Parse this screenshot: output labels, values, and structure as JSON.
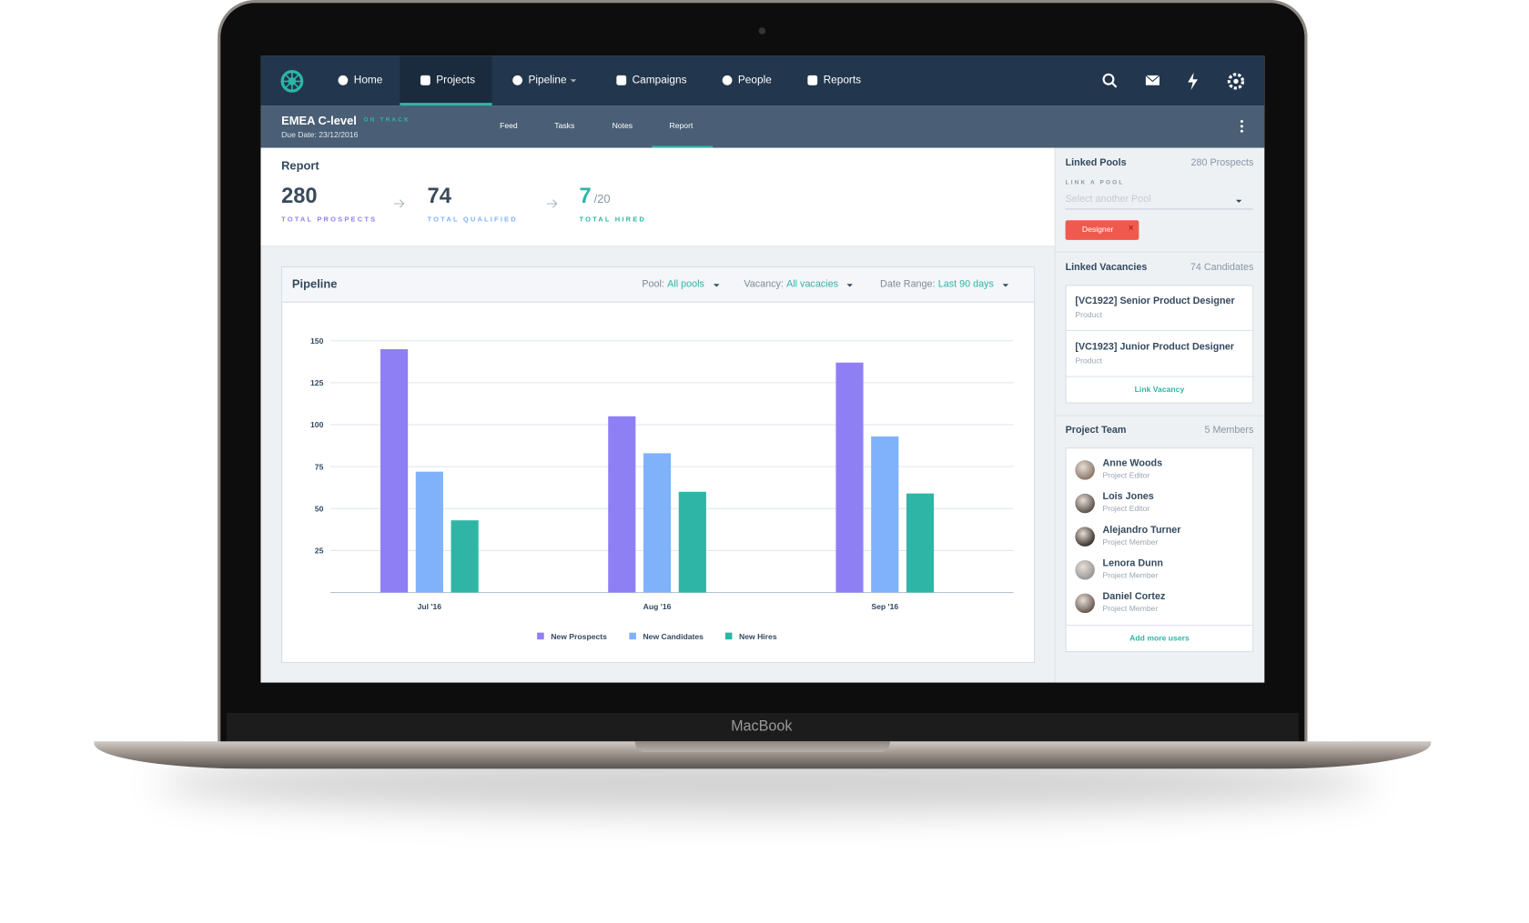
{
  "nav": {
    "items": [
      "Home",
      "Projects",
      "Pipeline",
      "Campaigns",
      "People",
      "Reports"
    ]
  },
  "project": {
    "name": "EMEA C-level",
    "status": "ON TRACK",
    "due_date": "Due Date: 23/12/2016",
    "tabs": [
      "Feed",
      "Tasks",
      "Notes",
      "Report"
    ]
  },
  "report": {
    "title": "Report",
    "stats": [
      {
        "value": 280,
        "label": "TOTAL PROSPECTS"
      },
      {
        "value": 74,
        "label": "TOTAL QUALIFIED"
      },
      {
        "value": 7,
        "suffix": "/20",
        "label": "TOTAL HIRED"
      }
    ]
  },
  "pipeline": {
    "title": "Pipeline",
    "filters": [
      {
        "label": "Pool:",
        "value": "All pools"
      },
      {
        "label": "Vacancy:",
        "value": "All vacacies"
      },
      {
        "label": "Date Range:",
        "value": "Last 90 days"
      }
    ]
  },
  "chart_data": {
    "type": "bar",
    "categories": [
      "Jul '16",
      "Aug '16",
      "Sep '16"
    ],
    "series": [
      {
        "name": "New Prospects",
        "color": "#8f7ff5",
        "values": [
          145,
          105,
          137
        ]
      },
      {
        "name": "New Candidates",
        "color": "#7fb2fb",
        "values": [
          72,
          83,
          93
        ]
      },
      {
        "name": "New Hires",
        "color": "#2eb5a5",
        "values": [
          43,
          60,
          59
        ]
      }
    ],
    "ylim": [
      0,
      150
    ],
    "yticks": [
      25,
      50,
      75,
      100,
      125,
      150
    ],
    "grid": true,
    "legend": "bottom"
  },
  "sidebar": {
    "pools": {
      "title": "Linked Pools",
      "count": "280 Prospects",
      "link_label": "LINK A POOL",
      "placeholder": "Select another Pool",
      "tags": [
        "Designer"
      ]
    },
    "vacancies": {
      "title": "Linked Vacancies",
      "count": "74 Candidates",
      "items": [
        {
          "title": "[VC1922] Senior Product Designer",
          "dept": "Product"
        },
        {
          "title": "[VC1923] Junior Product Designer",
          "dept": "Product"
        }
      ],
      "action": "Link Vacancy"
    },
    "team": {
      "title": "Project Team",
      "count": "5 Members",
      "members": [
        {
          "name": "Anne Woods",
          "role": "Project Editor"
        },
        {
          "name": "Lois Jones",
          "role": "Project Editor"
        },
        {
          "name": "Alejandro Turner",
          "role": "Project Member"
        },
        {
          "name": "Lenora Dunn",
          "role": "Project Member"
        },
        {
          "name": "Daniel Cortez",
          "role": "Project Member"
        }
      ],
      "action": "Add more users"
    }
  },
  "device_label": "MacBook"
}
